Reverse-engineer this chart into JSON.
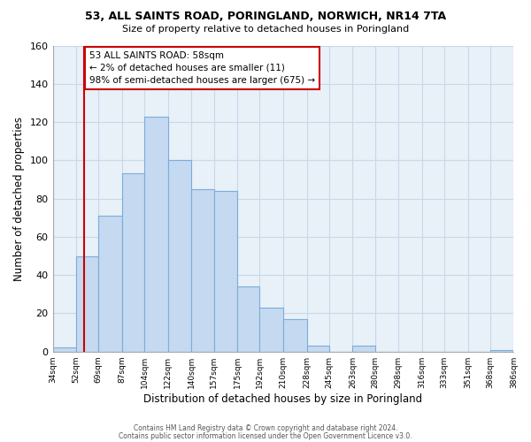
{
  "title": "53, ALL SAINTS ROAD, PORINGLAND, NORWICH, NR14 7TA",
  "subtitle": "Size of property relative to detached houses in Poringland",
  "xlabel": "Distribution of detached houses by size in Poringland",
  "ylabel": "Number of detached properties",
  "bin_edges": [
    34,
    52,
    69,
    87,
    104,
    122,
    140,
    157,
    175,
    192,
    210,
    228,
    245,
    263,
    280,
    298,
    316,
    333,
    351,
    368,
    386
  ],
  "bin_counts": [
    2,
    50,
    71,
    93,
    123,
    100,
    85,
    84,
    34,
    23,
    17,
    3,
    0,
    3,
    0,
    0,
    0,
    0,
    0,
    1
  ],
  "bar_color": "#c5d9f0",
  "bar_edge_color": "#7aaddb",
  "vline_x": 58,
  "vline_color": "#cc0000",
  "annotation_line1": "53 ALL SAINTS ROAD: 58sqm",
  "annotation_line2": "← 2% of detached houses are smaller (11)",
  "annotation_line3": "98% of semi-detached houses are larger (675) →",
  "annotation_box_color": "#cc0000",
  "annotation_box_fill": "#ffffff",
  "tick_labels": [
    "34sqm",
    "52sqm",
    "69sqm",
    "87sqm",
    "104sqm",
    "122sqm",
    "140sqm",
    "157sqm",
    "175sqm",
    "192sqm",
    "210sqm",
    "228sqm",
    "245sqm",
    "263sqm",
    "280sqm",
    "298sqm",
    "316sqm",
    "333sqm",
    "351sqm",
    "368sqm",
    "386sqm"
  ],
  "ylim": [
    0,
    160
  ],
  "yticks": [
    0,
    20,
    40,
    60,
    80,
    100,
    120,
    140,
    160
  ],
  "footer_line1": "Contains HM Land Registry data © Crown copyright and database right 2024.",
  "footer_line2": "Contains public sector information licensed under the Open Government Licence v3.0.",
  "background_color": "#ffffff",
  "grid_color": "#c8d8e8",
  "plot_bg_color": "#e8f0f8"
}
